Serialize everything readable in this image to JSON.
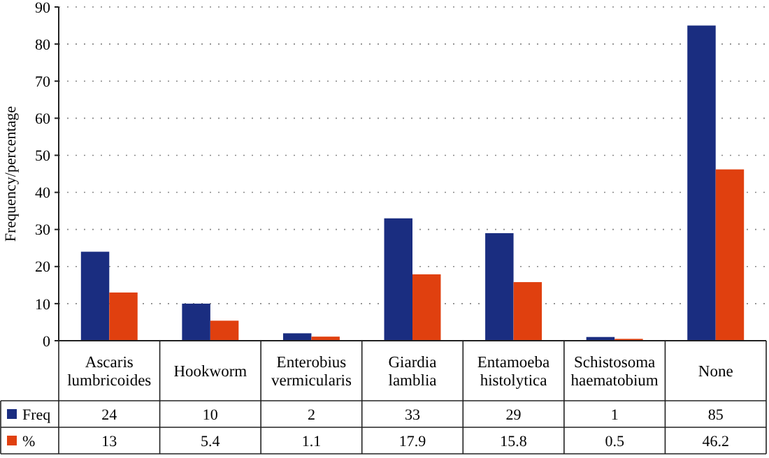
{
  "chart_data": {
    "type": "bar",
    "ylabel": "Frequency/percentage",
    "categories": [
      "Ascaris lumbricoides",
      "Hookworm",
      "Enterobius vermicularis",
      "Giardia lamblia",
      "Entamoeba histolytica",
      "Schistosoma haematobium",
      "None"
    ],
    "series": [
      {
        "name": "Freq",
        "color": "#1a2d80",
        "values": [
          24,
          10,
          2,
          33,
          29,
          1,
          85
        ]
      },
      {
        "name": "%",
        "color": "#e0400f",
        "values": [
          13,
          5.4,
          1.1,
          17.9,
          15.8,
          0.5,
          46.2
        ]
      }
    ],
    "ylim": [
      0,
      90
    ],
    "yticks": [
      0,
      10,
      20,
      30,
      40,
      50,
      60,
      70,
      80,
      90
    ],
    "grid": "y",
    "legend": "bottom",
    "data_labels": true
  }
}
